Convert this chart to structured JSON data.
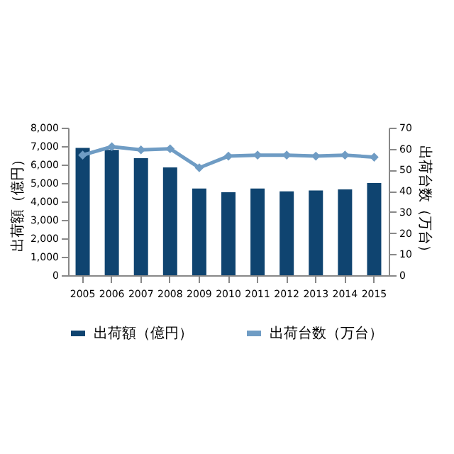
{
  "chart_data": {
    "type": "bar",
    "ylabel": "出荷額（億円）",
    "y2label": "出荷台数（万台）",
    "categories": [
      "2005",
      "2006",
      "2007",
      "2008",
      "2009",
      "2010",
      "2011",
      "2012",
      "2013",
      "2014",
      "2015"
    ],
    "series": [
      {
        "name": "出荷額（億円）",
        "color": "#0f4470",
        "values": [
          6900,
          6800,
          6350,
          5850,
          4700,
          4500,
          4700,
          4550,
          4600,
          4650,
          5000
        ]
      },
      {
        "name": "出荷台数（万台）",
        "type": "line",
        "axis": "y2",
        "color": "#6f9cc4",
        "marker": "diamond",
        "values": [
          57,
          61,
          59.5,
          60,
          51,
          56.5,
          57,
          57,
          56.5,
          57,
          56
        ]
      }
    ],
    "ylim": [
      0,
      8000
    ],
    "yticks": [
      0,
      {
        "value": 1000,
        "label": "1,000"
      },
      {
        "value": 2000,
        "label": "2,000"
      },
      {
        "value": 3000,
        "label": "3,000"
      },
      {
        "value": 4000,
        "label": "4,000"
      },
      {
        "value": 5000,
        "label": "5,000"
      },
      {
        "value": 6000,
        "label": "6,000"
      },
      {
        "value": 7000,
        "label": "7,000"
      },
      {
        "value": 8000,
        "label": "8,000"
      }
    ],
    "y2lim": [
      0,
      70
    ],
    "y2ticks": [
      0,
      10,
      20,
      30,
      40,
      50,
      60,
      70
    ],
    "grid": false,
    "legend": "bottom"
  }
}
